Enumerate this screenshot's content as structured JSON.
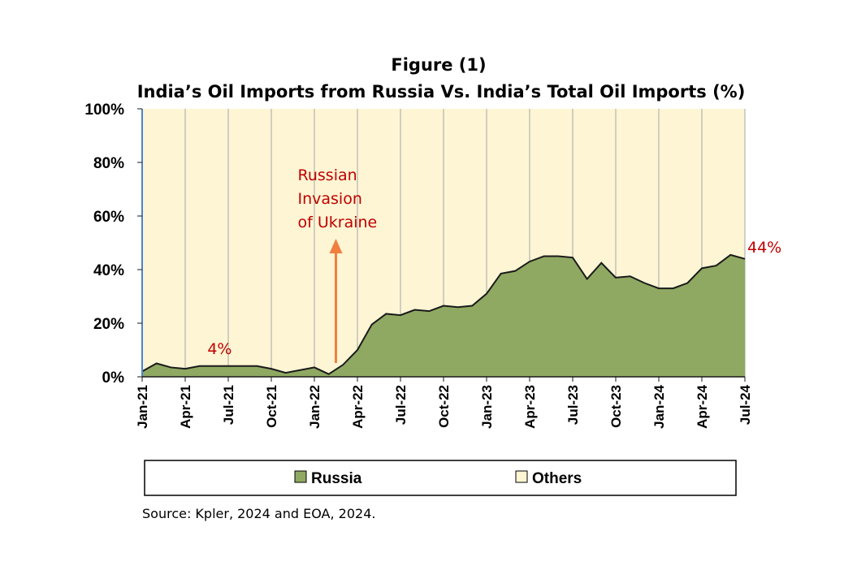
{
  "chart_data": {
    "type": "area",
    "title": "Figure (1)",
    "subtitle": "India’s Oil Imports from Russia Vs. India’s Total Oil Imports (%)",
    "ylabel": "",
    "xlabel": "",
    "ylim": [
      0,
      100
    ],
    "y_ticks": [
      "0%",
      "20%",
      "40%",
      "60%",
      "80%",
      "100%"
    ],
    "y_tick_values": [
      0,
      20,
      40,
      60,
      80,
      100
    ],
    "x_tick_labels": [
      "Jan-21",
      "Apr-21",
      "Jul-21",
      "Oct-21",
      "Jan-22",
      "Apr-22",
      "Jul-22",
      "Oct-22",
      "Jan-23",
      "Apr-23",
      "Jul-23",
      "Oct-23",
      "Jan-24",
      "Apr-24",
      "Jul-24"
    ],
    "stacked": true,
    "grid": "vertical",
    "legend_position": "bottom",
    "months_count": 43,
    "series": [
      {
        "name": "Russia",
        "color": "#8fa962",
        "values": [
          2,
          5,
          3.5,
          3,
          4,
          4,
          4,
          4,
          4,
          3,
          1.5,
          2.5,
          3.5,
          1,
          4.5,
          10,
          19.5,
          23.5,
          23,
          25,
          24.5,
          26.5,
          26,
          26.5,
          31,
          38.5,
          39.5,
          43,
          45,
          45,
          44.5,
          36.5,
          42.5,
          37,
          37.5,
          35,
          33,
          33,
          35,
          40.5,
          41.5,
          45.5,
          44
        ]
      },
      {
        "name": "Others",
        "color": "#fdf5d4"
      }
    ],
    "annotations": [
      {
        "text": "4%",
        "x_index": 5,
        "y": 4,
        "color": "#c00000"
      },
      {
        "text": "44%",
        "x_index": 42,
        "y": 44,
        "color": "#c00000"
      },
      {
        "lines": [
          "Russian",
          "Invasion",
          "of Ukraine"
        ],
        "x_index": 13.5,
        "color": "#c00000",
        "arrow_color": "#f08040"
      }
    ],
    "source": "Source: Kpler, 2024 and EOA, 2024."
  }
}
